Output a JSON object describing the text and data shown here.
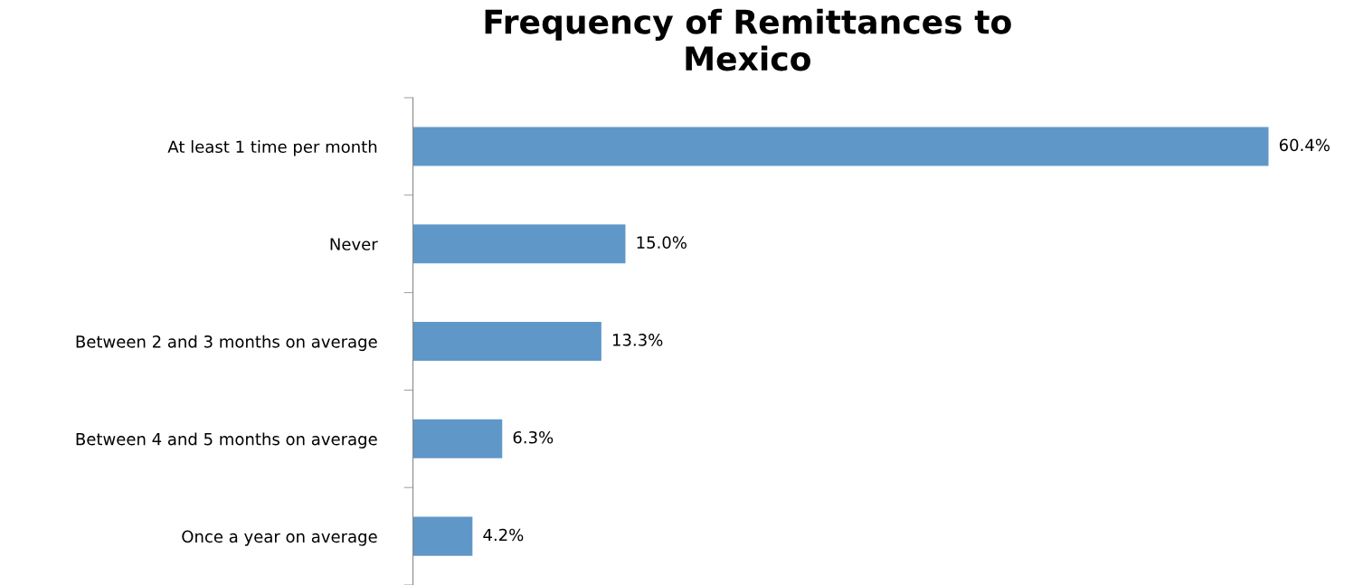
{
  "chart_data": {
    "type": "bar",
    "orientation": "horizontal",
    "title": "Frequency of Remittances to Mexico",
    "categories": [
      "At least 1 time per month",
      "Never",
      "Between 2 and 3 months on average",
      "Between 4 and 5 months on average",
      "Once a year on average"
    ],
    "values": [
      60.4,
      15.0,
      13.3,
      6.3,
      4.2
    ],
    "value_labels": [
      "60.4%",
      "15.0%",
      "13.3%",
      "6.3%",
      "4.2%"
    ],
    "color": "#6097c9",
    "grid": false,
    "legend": false
  }
}
